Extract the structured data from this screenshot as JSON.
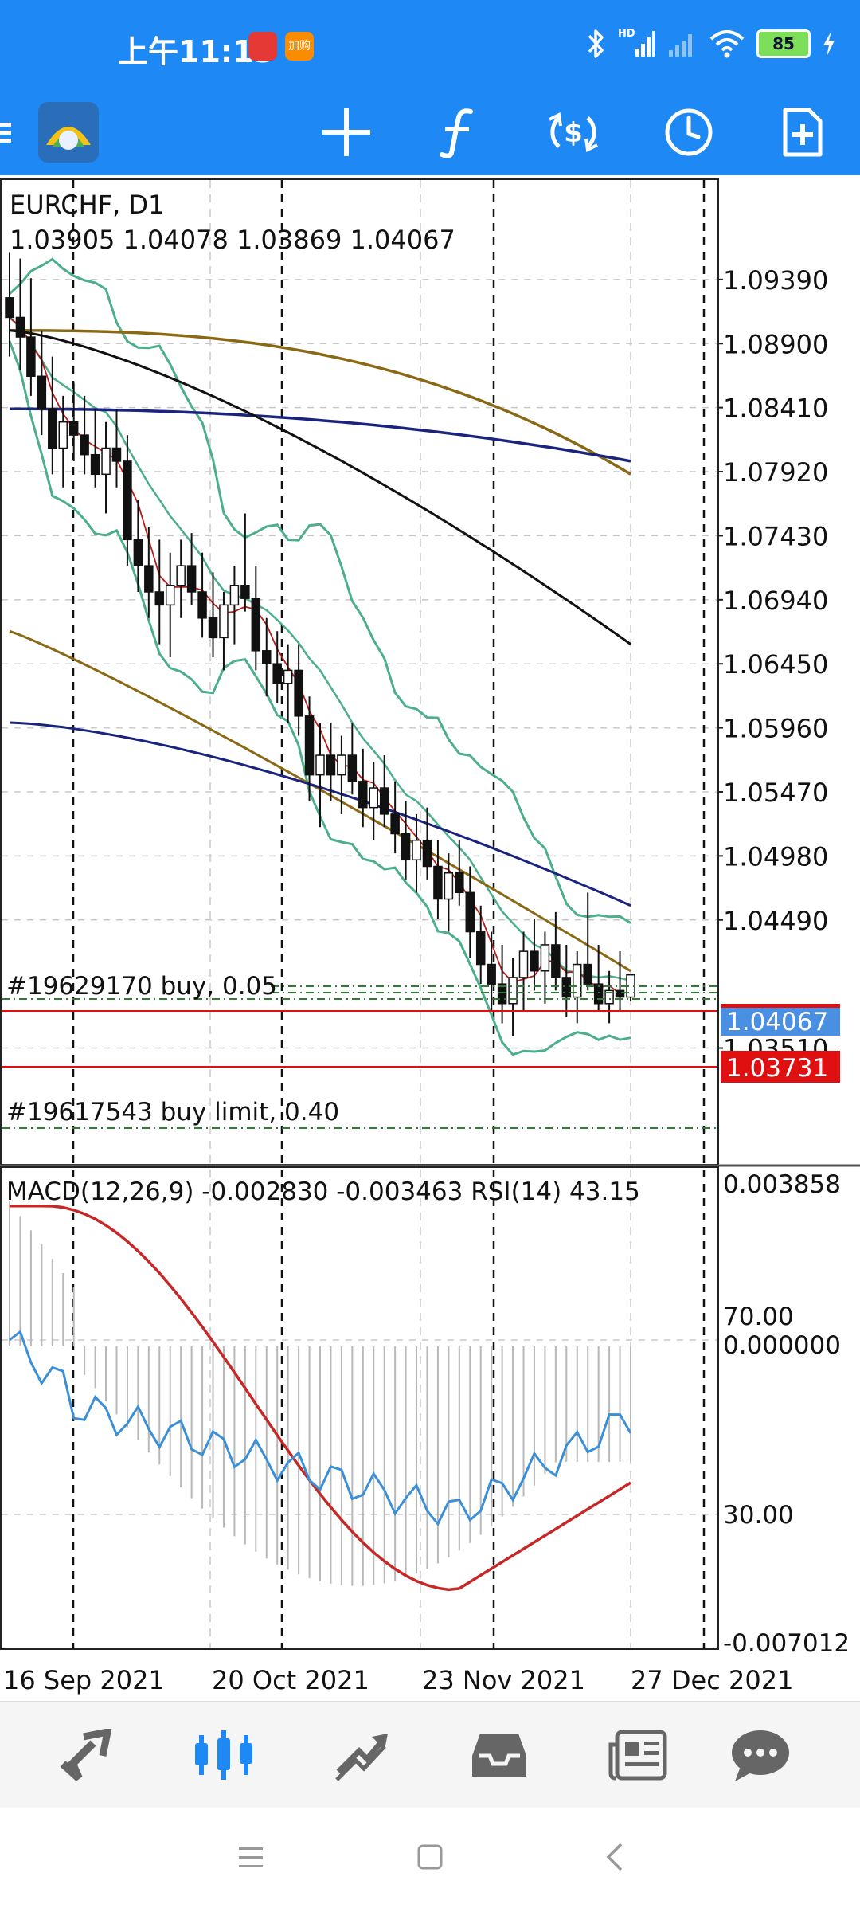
{
  "status_bar": {
    "time": "上午11:13",
    "notif_badge": "加购",
    "network_badge": "HD",
    "battery": "85"
  },
  "toolbar": {
    "icons": [
      "menu-icon",
      "app-logo-icon",
      "crosshair-icon",
      "indicators-icon",
      "trade-icon",
      "timeframe-icon",
      "add-order-icon"
    ]
  },
  "chart": {
    "symbol_label": "EURCHF, D1",
    "ohlc_label": "1.03905 1.04078 1.03869 1.04067",
    "price_axis": [
      "1.09390",
      "1.08900",
      "1.08410",
      "1.07920",
      "1.07430",
      "1.06940",
      "1.06450",
      "1.05960",
      "1.05470",
      "1.04980",
      "1.04490",
      "1.03510"
    ],
    "current_price": "1.04067",
    "current_price_color": "#4a90e2",
    "alert_price": "1.03731",
    "alert_price_color": "#e01010",
    "orders": [
      {
        "label": "#19629170 buy, 0.05"
      },
      {
        "label": "#19617543 buy limit, 0.40"
      }
    ],
    "indicator_label": "MACD(12,26,9) -0.002830 -0.003463 RSI(14) 43.15",
    "indicator_axis": {
      "top": "0.003858",
      "rsi70": "70.00",
      "zero": "0.000000",
      "rsi30": "30.00",
      "bottom": "-0.007012"
    },
    "date_axis": [
      "16 Sep 2021",
      "20 Oct 2021",
      "23 Nov 2021",
      "27 Dec 2021"
    ]
  },
  "chart_data": {
    "type": "line",
    "title": "EURCHF, D1",
    "x": [
      "16 Sep 2021",
      "20 Oct 2021",
      "23 Nov 2021",
      "27 Dec 2021"
    ],
    "ylim": [
      1.033,
      1.097
    ],
    "series": [],
    "candles": [
      [
        1.0925,
        1.096,
        1.088,
        1.091
      ],
      [
        1.091,
        1.0955,
        1.087,
        1.0895
      ],
      [
        1.0895,
        1.094,
        1.085,
        1.0865
      ],
      [
        1.0865,
        1.09,
        1.082,
        1.084
      ],
      [
        1.084,
        1.088,
        1.079,
        1.081
      ],
      [
        1.081,
        1.085,
        1.078,
        1.083
      ],
      [
        1.083,
        1.086,
        1.08,
        1.082
      ],
      [
        1.082,
        1.085,
        1.079,
        1.0805
      ],
      [
        1.0805,
        1.084,
        1.078,
        1.079
      ],
      [
        1.079,
        1.083,
        1.076,
        1.081
      ],
      [
        1.081,
        1.084,
        1.078,
        1.08
      ],
      [
        1.08,
        1.082,
        1.072,
        1.074
      ],
      [
        1.074,
        1.077,
        1.07,
        1.072
      ],
      [
        1.072,
        1.075,
        1.068,
        1.07
      ],
      [
        1.07,
        1.074,
        1.066,
        1.069
      ],
      [
        1.069,
        1.073,
        1.065,
        1.0705
      ],
      [
        1.0705,
        1.074,
        1.068,
        1.072
      ],
      [
        1.072,
        1.0745,
        1.069,
        1.07
      ],
      [
        1.07,
        1.073,
        1.0665,
        1.068
      ],
      [
        1.068,
        1.0715,
        1.065,
        1.0665
      ],
      [
        1.0665,
        1.07,
        1.064,
        1.069
      ],
      [
        1.069,
        1.072,
        1.066,
        1.0705
      ],
      [
        1.0705,
        1.076,
        1.0685,
        1.0695
      ],
      [
        1.0695,
        1.072,
        1.064,
        1.0655
      ],
      [
        1.0655,
        1.068,
        1.062,
        1.0645
      ],
      [
        1.0645,
        1.067,
        1.0615,
        1.063
      ],
      [
        1.063,
        1.066,
        1.06,
        1.064
      ],
      [
        1.064,
        1.066,
        1.059,
        1.0605
      ],
      [
        1.0605,
        1.062,
        1.054,
        1.056
      ],
      [
        1.056,
        1.06,
        1.052,
        1.0575
      ],
      [
        1.0575,
        1.06,
        1.054,
        1.056
      ],
      [
        1.056,
        1.059,
        1.053,
        1.0575
      ],
      [
        1.0575,
        1.06,
        1.0545,
        1.0555
      ],
      [
        1.0555,
        1.058,
        1.052,
        1.0535
      ],
      [
        1.0535,
        1.057,
        1.051,
        1.055
      ],
      [
        1.055,
        1.0575,
        1.052,
        1.053
      ],
      [
        1.053,
        1.0555,
        1.05,
        1.0515
      ],
      [
        1.0515,
        1.054,
        1.048,
        1.0495
      ],
      [
        1.0495,
        1.053,
        1.047,
        1.051
      ],
      [
        1.051,
        1.0535,
        1.048,
        1.049
      ],
      [
        1.049,
        1.051,
        1.045,
        1.0465
      ],
      [
        1.0465,
        1.05,
        1.044,
        1.0485
      ],
      [
        1.0485,
        1.051,
        1.046,
        1.047
      ],
      [
        1.047,
        1.049,
        1.042,
        1.044
      ],
      [
        1.044,
        1.046,
        1.04,
        1.0415
      ],
      [
        1.0415,
        1.044,
        1.038,
        1.04
      ],
      [
        1.04,
        1.043,
        1.037,
        1.0385
      ],
      [
        1.0385,
        1.042,
        1.036,
        1.0405
      ],
      [
        1.0405,
        1.044,
        1.038,
        1.0425
      ],
      [
        1.0425,
        1.045,
        1.0395,
        1.041
      ],
      [
        1.041,
        1.044,
        1.0385,
        1.043
      ],
      [
        1.043,
        1.0455,
        1.0395,
        1.0405
      ],
      [
        1.0405,
        1.043,
        1.0375,
        1.039
      ],
      [
        1.039,
        1.0425,
        1.037,
        1.0415
      ],
      [
        1.0415,
        1.047,
        1.0395,
        1.04
      ],
      [
        1.04,
        1.043,
        1.038,
        1.0385
      ],
      [
        1.0385,
        1.041,
        1.037,
        1.0395
      ],
      [
        1.0395,
        1.0425,
        1.038,
        1.039
      ],
      [
        1.039,
        1.0408,
        1.0387,
        1.0407
      ]
    ]
  }
}
